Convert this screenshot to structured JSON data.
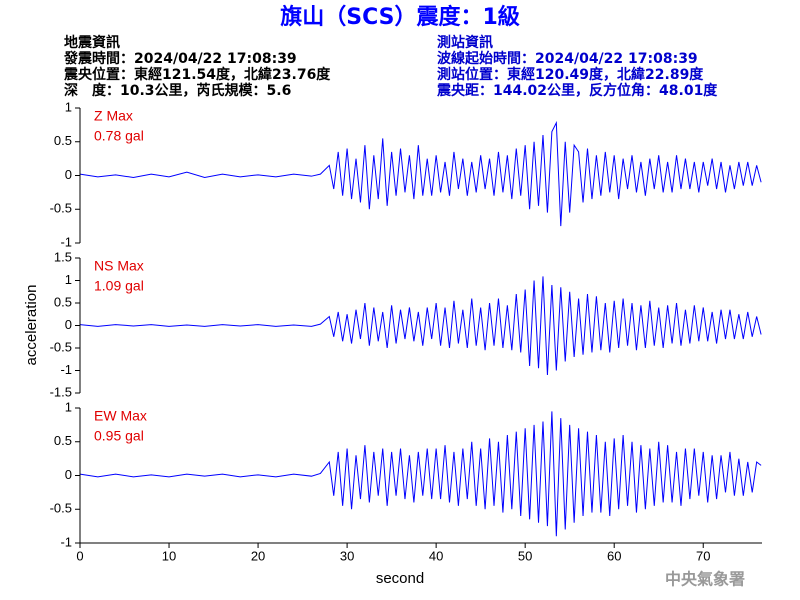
{
  "header": {
    "title": "旗山（SCS）震度：1級",
    "left_lines": [
      "地震資訊",
      "發震時間：2024/04/22 17:08:39",
      "震央位置：東經121.54度，北緯23.76度",
      "深　度：10.3公里，芮氏規模：5.6"
    ],
    "right_lines": [
      "測站資訊",
      "波線起始時間：2024/04/22 17:08:39",
      "測站位置：東經120.49度，北緯22.89度",
      "震央距：144.02公里，反方位角：48.01度"
    ]
  },
  "y_label": "acceleration",
  "x_label": "second",
  "footer": "中央氣象署",
  "chart_data": [
    {
      "type": "line",
      "title": "Z Max",
      "annotation": "0.78 gal",
      "color": "#0000ff",
      "xlim": [
        0,
        76.6
      ],
      "ylim": [
        -1,
        1
      ],
      "yticks": [
        -1,
        -0.5,
        0,
        0.5,
        1
      ],
      "x": [
        0,
        2,
        4,
        6,
        8,
        10,
        12,
        14,
        16,
        18,
        20,
        22,
        24,
        26,
        27,
        28,
        28.5,
        29,
        29.5,
        30,
        30.5,
        31,
        31.5,
        32,
        32.5,
        33,
        33.5,
        34,
        34.5,
        35,
        35.5,
        36,
        36.5,
        37,
        37.5,
        38,
        38.5,
        39,
        39.5,
        40,
        40.5,
        41,
        41.5,
        42,
        42.5,
        43,
        43.5,
        44,
        44.5,
        45,
        45.5,
        46,
        46.5,
        47,
        47.5,
        48,
        48.5,
        49,
        49.5,
        50,
        50.5,
        51,
        51.5,
        52,
        52.5,
        53,
        53.5,
        54,
        54.5,
        55,
        55.5,
        56,
        56.5,
        57,
        57.5,
        58,
        58.5,
        59,
        59.5,
        60,
        60.5,
        61,
        61.5,
        62,
        62.5,
        63,
        63.5,
        64,
        64.5,
        65,
        65.5,
        66,
        66.5,
        67,
        67.5,
        68,
        68.5,
        69,
        69.5,
        70,
        70.5,
        71,
        71.5,
        72,
        72.5,
        73,
        73.5,
        74,
        74.5,
        75,
        75.5,
        76,
        76.5
      ],
      "values": [
        0.02,
        -0.02,
        0.01,
        -0.03,
        0.02,
        -0.02,
        0.05,
        -0.03,
        0.02,
        -0.02,
        0.01,
        -0.02,
        0.02,
        -0.01,
        0.02,
        0.15,
        -0.2,
        0.35,
        -0.3,
        0.4,
        -0.35,
        0.25,
        -0.4,
        0.45,
        -0.5,
        0.3,
        -0.35,
        0.55,
        -0.45,
        0.35,
        -0.3,
        0.4,
        -0.25,
        0.3,
        -0.35,
        0.45,
        -0.3,
        0.25,
        -0.3,
        0.3,
        -0.25,
        0.2,
        -0.3,
        0.35,
        -0.2,
        0.25,
        -0.3,
        0.2,
        -0.25,
        0.3,
        -0.2,
        0.25,
        -0.3,
        0.35,
        -0.25,
        0.3,
        -0.35,
        0.4,
        -0.3,
        0.45,
        -0.5,
        0.5,
        -0.45,
        0.6,
        -0.55,
        0.65,
        0.78,
        -0.75,
        0.5,
        -0.55,
        0.45,
        0.35,
        -0.4,
        0.4,
        -0.35,
        0.3,
        -0.3,
        0.35,
        -0.25,
        0.3,
        -0.35,
        0.25,
        -0.2,
        0.3,
        -0.25,
        0.2,
        -0.3,
        0.25,
        -0.2,
        0.3,
        -0.25,
        0.2,
        -0.25,
        0.3,
        -0.2,
        0.25,
        -0.2,
        0.2,
        -0.25,
        0.2,
        -0.15,
        0.25,
        -0.2,
        0.2,
        -0.25,
        0.15,
        -0.2,
        0.2,
        -0.15,
        0.2,
        -0.15,
        0.15,
        -0.1
      ]
    },
    {
      "type": "line",
      "title": "NS Max",
      "annotation": "1.09 gal",
      "color": "#0000ff",
      "xlim": [
        0,
        76.6
      ],
      "ylim": [
        -1.5,
        1.5
      ],
      "yticks": [
        -1.5,
        -1,
        -0.5,
        0,
        0.5,
        1,
        1.5
      ],
      "x": [
        0,
        2,
        4,
        6,
        8,
        10,
        12,
        14,
        16,
        18,
        20,
        22,
        24,
        26,
        27,
        28,
        28.5,
        29,
        29.5,
        30,
        30.5,
        31,
        31.5,
        32,
        32.5,
        33,
        33.5,
        34,
        34.5,
        35,
        35.5,
        36,
        36.5,
        37,
        37.5,
        38,
        38.5,
        39,
        39.5,
        40,
        40.5,
        41,
        41.5,
        42,
        42.5,
        43,
        43.5,
        44,
        44.5,
        45,
        45.5,
        46,
        46.5,
        47,
        47.5,
        48,
        48.5,
        49,
        49.5,
        50,
        50.5,
        51,
        51.5,
        52,
        52.5,
        53,
        53.5,
        54,
        54.5,
        55,
        55.5,
        56,
        56.5,
        57,
        57.5,
        58,
        58.5,
        59,
        59.5,
        60,
        60.5,
        61,
        61.5,
        62,
        62.5,
        63,
        63.5,
        64,
        64.5,
        65,
        65.5,
        66,
        66.5,
        67,
        67.5,
        68,
        68.5,
        69,
        69.5,
        70,
        70.5,
        71,
        71.5,
        72,
        72.5,
        73,
        73.5,
        74,
        74.5,
        75,
        75.5,
        76,
        76.5
      ],
      "values": [
        0.02,
        -0.02,
        0.02,
        -0.01,
        0.02,
        -0.02,
        0.01,
        -0.02,
        0.02,
        -0.01,
        0.02,
        -0.02,
        0.01,
        -0.02,
        0.03,
        0.2,
        -0.25,
        0.3,
        -0.35,
        0.25,
        -0.4,
        0.35,
        -0.3,
        0.5,
        -0.45,
        0.4,
        -0.35,
        0.3,
        -0.5,
        0.45,
        -0.4,
        0.35,
        -0.3,
        0.4,
        -0.35,
        0.3,
        -0.45,
        0.4,
        -0.3,
        0.5,
        -0.45,
        0.4,
        -0.5,
        0.55,
        -0.4,
        0.35,
        -0.5,
        0.6,
        -0.45,
        0.4,
        -0.55,
        0.5,
        -0.45,
        0.6,
        -0.5,
        0.45,
        -0.55,
        0.7,
        -0.6,
        0.8,
        -0.9,
        1.0,
        -0.95,
        1.09,
        -1.1,
        0.9,
        -1.0,
        0.85,
        -0.8,
        0.75,
        -0.7,
        0.6,
        -0.65,
        0.7,
        -0.6,
        0.65,
        -0.55,
        0.5,
        -0.6,
        0.55,
        -0.5,
        0.6,
        -0.45,
        0.5,
        -0.55,
        0.45,
        -0.5,
        0.55,
        -0.45,
        0.4,
        -0.5,
        0.45,
        -0.4,
        0.5,
        -0.45,
        0.35,
        -0.4,
        0.45,
        -0.35,
        0.4,
        -0.35,
        0.3,
        -0.4,
        0.35,
        -0.3,
        0.35,
        -0.3,
        0.25,
        -0.3,
        0.3,
        -0.25,
        0.2,
        -0.2
      ]
    },
    {
      "type": "line",
      "title": "EW Max",
      "annotation": "0.95 gal",
      "color": "#0000ff",
      "xlim": [
        0,
        76.6
      ],
      "xticks": [
        0,
        10,
        20,
        30,
        40,
        50,
        60,
        70
      ],
      "ylim": [
        -1,
        1
      ],
      "yticks": [
        -1,
        -0.5,
        0,
        0.5,
        1
      ],
      "x": [
        0,
        2,
        4,
        6,
        8,
        10,
        12,
        14,
        16,
        18,
        20,
        22,
        24,
        26,
        27,
        28,
        28.5,
        29,
        29.5,
        30,
        30.5,
        31,
        31.5,
        32,
        32.5,
        33,
        33.5,
        34,
        34.5,
        35,
        35.5,
        36,
        36.5,
        37,
        37.5,
        38,
        38.5,
        39,
        39.5,
        40,
        40.5,
        41,
        41.5,
        42,
        42.5,
        43,
        43.5,
        44,
        44.5,
        45,
        45.5,
        46,
        46.5,
        47,
        47.5,
        48,
        48.5,
        49,
        49.5,
        50,
        50.5,
        51,
        51.5,
        52,
        52.5,
        53,
        53.5,
        54,
        54.5,
        55,
        55.5,
        56,
        56.5,
        57,
        57.5,
        58,
        58.5,
        59,
        59.5,
        60,
        60.5,
        61,
        61.5,
        62,
        62.5,
        63,
        63.5,
        64,
        64.5,
        65,
        65.5,
        66,
        66.5,
        67,
        67.5,
        68,
        68.5,
        69,
        69.5,
        70,
        70.5,
        71,
        71.5,
        72,
        72.5,
        73,
        73.5,
        74,
        74.5,
        75,
        75.5,
        76,
        76.5
      ],
      "values": [
        0.02,
        -0.02,
        0.02,
        -0.02,
        0.01,
        -0.02,
        0.02,
        -0.01,
        0.02,
        -0.02,
        0.01,
        -0.02,
        0.02,
        -0.01,
        0.03,
        0.2,
        -0.3,
        0.35,
        -0.45,
        0.4,
        -0.5,
        0.3,
        -0.35,
        0.45,
        -0.4,
        0.35,
        -0.3,
        0.4,
        -0.45,
        0.35,
        -0.3,
        0.4,
        -0.35,
        0.3,
        -0.4,
        0.35,
        -0.3,
        0.4,
        -0.35,
        0.4,
        -0.35,
        0.45,
        -0.4,
        0.35,
        -0.45,
        0.4,
        -0.35,
        0.5,
        -0.45,
        0.4,
        -0.5,
        0.55,
        -0.45,
        0.5,
        -0.55,
        0.6,
        -0.5,
        0.65,
        -0.6,
        0.7,
        -0.65,
        0.75,
        -0.7,
        0.8,
        -0.75,
        0.95,
        -0.9,
        0.85,
        -0.8,
        0.75,
        -0.7,
        0.7,
        -0.6,
        0.65,
        -0.55,
        0.6,
        -0.55,
        0.5,
        -0.6,
        0.55,
        -0.5,
        0.6,
        -0.45,
        0.5,
        -0.55,
        0.45,
        -0.5,
        0.4,
        -0.45,
        0.5,
        -0.4,
        0.45,
        -0.4,
        0.35,
        -0.45,
        0.4,
        -0.35,
        0.4,
        -0.3,
        0.35,
        -0.4,
        0.3,
        -0.35,
        0.3,
        -0.25,
        0.35,
        -0.3,
        0.25,
        -0.3,
        0.2,
        -0.25,
        0.2,
        0.15
      ]
    }
  ]
}
